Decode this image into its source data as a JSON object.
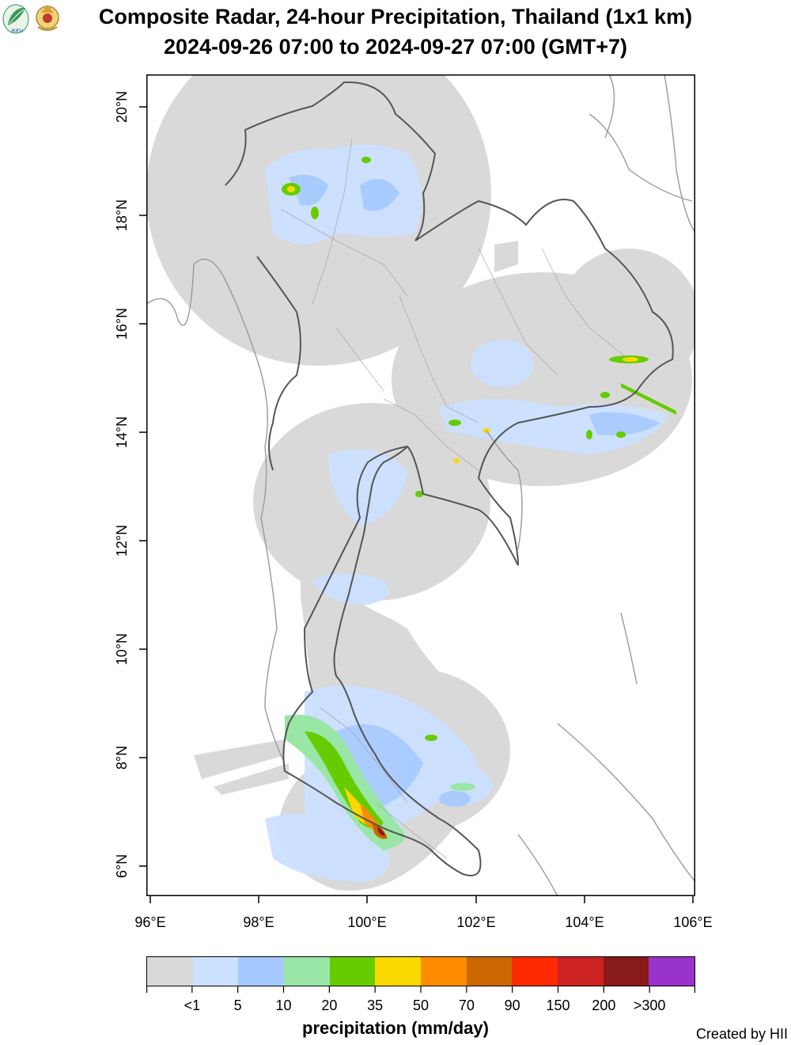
{
  "header": {
    "title_line1": "Composite Radar, 24-hour Precipitation, Thailand (1x1 km)",
    "title_line2": "2024-09-26 07:00 to 2024-09-27 07:00 (GMT+7)",
    "logo_left_text": "สสน",
    "logo_left_icon": "leaf-logo-icon",
    "logo_right_icon": "royal-emblem-icon"
  },
  "map": {
    "x_ticks": [
      "96°E",
      "98°E",
      "100°E",
      "102°E",
      "104°E",
      "106°E"
    ],
    "y_ticks": [
      "6°N",
      "8°N",
      "10°N",
      "12°N",
      "14°N",
      "16°N",
      "18°N",
      "20°N"
    ],
    "colors": {
      "radar_coverage": "#d9d9d9",
      "country_border": "#555555",
      "province_border": "#a0a0a0",
      "neighbor_border": "#9a9a9a"
    }
  },
  "legend": {
    "title": "precipitation (mm/day)",
    "labels": [
      "<1",
      "5",
      "10",
      "20",
      "35",
      "50",
      "70",
      "90",
      "150",
      "200",
      ">300"
    ],
    "colors": [
      "#d9d9d9",
      "#cce0ff",
      "#a6caff",
      "#99e6a6",
      "#66cc00",
      "#fad900",
      "#ff8c00",
      "#cc6600",
      "#ff2a00",
      "#cc2222",
      "#881a1a",
      "#9933cc"
    ]
  },
  "footer": {
    "credit": "Created by HII"
  }
}
